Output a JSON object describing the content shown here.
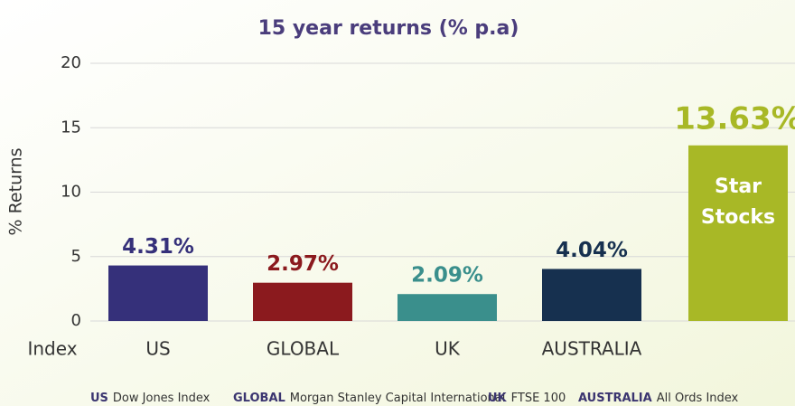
{
  "chart_data": {
    "type": "bar",
    "title": "15 year returns (% p.a)",
    "ylabel": "% Returns",
    "xlabel": "Index",
    "categories": [
      "US",
      "GLOBAL",
      "UK",
      "AUSTRALIA",
      null
    ],
    "values": [
      4.31,
      2.97,
      2.09,
      4.04,
      13.63
    ],
    "value_labels": [
      "4.31%",
      "2.97%",
      "2.09%",
      "4.04%",
      "13.63%"
    ],
    "colors": [
      "#35307a",
      "#8b1a1e",
      "#3a8f8c",
      "#16304f",
      "#a8b826"
    ],
    "bar_annotation": [
      "Star",
      "Stocks"
    ],
    "ylim": [
      0,
      20
    ],
    "yticks": [
      0,
      5,
      10,
      15,
      20
    ],
    "grid": true,
    "footnotes": [
      {
        "key": "US",
        "text": "Dow Jones Index"
      },
      {
        "key": "GLOBAL",
        "text": "Morgan Stanley Capital International"
      },
      {
        "key": "UK",
        "text": "FTSE 100"
      },
      {
        "key": "AUSTRALIA",
        "text": "All Ords Index"
      }
    ]
  }
}
